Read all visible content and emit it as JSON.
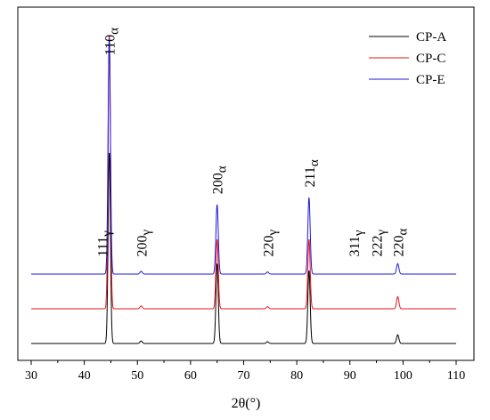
{
  "chart_data": {
    "type": "line",
    "xlabel": "2θ(°)",
    "ylabel": "",
    "xlim": [
      30,
      110
    ],
    "xticks": [
      "30",
      "40",
      "50",
      "60",
      "70",
      "80",
      "90",
      "100",
      "110"
    ],
    "yticks": "none",
    "grid": false,
    "legend_position": "top-right",
    "series": [
      {
        "name": "CP-A",
        "color": "#000000",
        "baseline": 0.0,
        "peaks": [
          {
            "x": 44.7,
            "height": 5.5
          },
          {
            "x": 50.7,
            "height": 0.07
          },
          {
            "x": 65.0,
            "height": 2.3
          },
          {
            "x": 74.5,
            "height": 0.05
          },
          {
            "x": 82.3,
            "height": 2.1
          },
          {
            "x": 99.0,
            "height": 0.25
          }
        ]
      },
      {
        "name": "CP-C",
        "color": "#e8141a",
        "baseline": 1.0,
        "peaks": [
          {
            "x": 44.7,
            "height": 7.9
          },
          {
            "x": 50.7,
            "height": 0.08
          },
          {
            "x": 65.0,
            "height": 2.0
          },
          {
            "x": 74.5,
            "height": 0.06
          },
          {
            "x": 82.3,
            "height": 2.0
          },
          {
            "x": 99.0,
            "height": 0.35
          }
        ]
      },
      {
        "name": "CP-E",
        "color": "#2018d8",
        "baseline": 2.0,
        "peaks": [
          {
            "x": 44.7,
            "height": 6.8
          },
          {
            "x": 50.7,
            "height": 0.08
          },
          {
            "x": 65.0,
            "height": 2.0
          },
          {
            "x": 74.5,
            "height": 0.06
          },
          {
            "x": 82.3,
            "height": 2.2
          },
          {
            "x": 99.0,
            "height": 0.3
          }
        ]
      }
    ],
    "annotations": [
      {
        "main": "110",
        "sub": "α",
        "x": 44.7,
        "y": 8.3
      },
      {
        "main": "111",
        "sub": "γ",
        "x": 43.3,
        "y": 2.5
      },
      {
        "main": "200",
        "sub": "γ",
        "x": 50.7,
        "y": 2.5
      },
      {
        "main": "200",
        "sub": "α",
        "x": 65.0,
        "y": 4.3
      },
      {
        "main": "220",
        "sub": "γ",
        "x": 74.5,
        "y": 2.5
      },
      {
        "main": "211",
        "sub": "α",
        "x": 82.3,
        "y": 4.5
      },
      {
        "main": "311",
        "sub": "γ",
        "x": 90.7,
        "y": 2.5
      },
      {
        "main": "222",
        "sub": "γ",
        "x": 95.0,
        "y": 2.5
      },
      {
        "main": "220",
        "sub": "α",
        "x": 99.0,
        "y": 2.5
      }
    ]
  }
}
